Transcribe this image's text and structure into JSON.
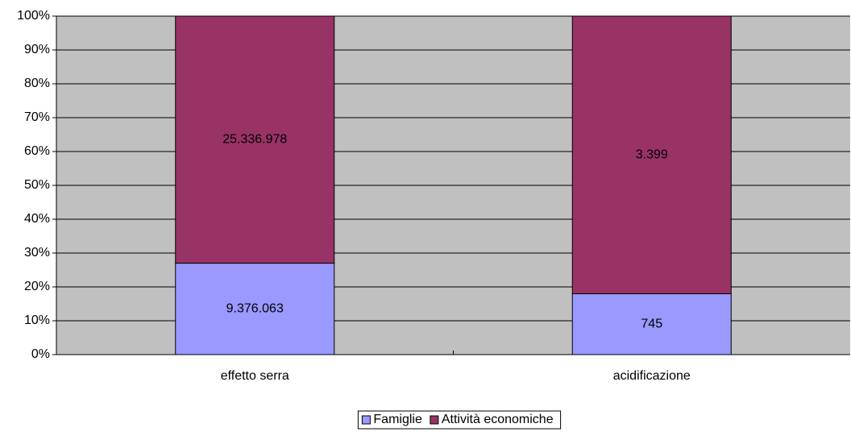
{
  "chart_data": {
    "type": "bar",
    "stacking": "percent",
    "categories": [
      "effetto serra",
      "acidificazione"
    ],
    "series": [
      {
        "name": "Famiglie",
        "color": "#9999ff",
        "values": [
          9376063,
          745
        ],
        "value_labels": [
          "9.376.063",
          "745"
        ]
      },
      {
        "name": "Attività economiche",
        "color": "#993366",
        "values": [
          25336978,
          3399
        ],
        "value_labels": [
          "25.336.978",
          "3.399"
        ]
      }
    ],
    "ylim": [
      0,
      100
    ],
    "yticks": [
      {
        "value": 0,
        "label": "0%"
      },
      {
        "value": 10,
        "label": "10%"
      },
      {
        "value": 20,
        "label": "20%"
      },
      {
        "value": 30,
        "label": "30%"
      },
      {
        "value": 40,
        "label": "40%"
      },
      {
        "value": 50,
        "label": "50%"
      },
      {
        "value": 60,
        "label": "60%"
      },
      {
        "value": 70,
        "label": "70%"
      },
      {
        "value": 80,
        "label": "80%"
      },
      {
        "value": 90,
        "label": "90%"
      },
      {
        "value": 100,
        "label": "100%"
      }
    ],
    "grid": true,
    "legend": "bottom"
  }
}
